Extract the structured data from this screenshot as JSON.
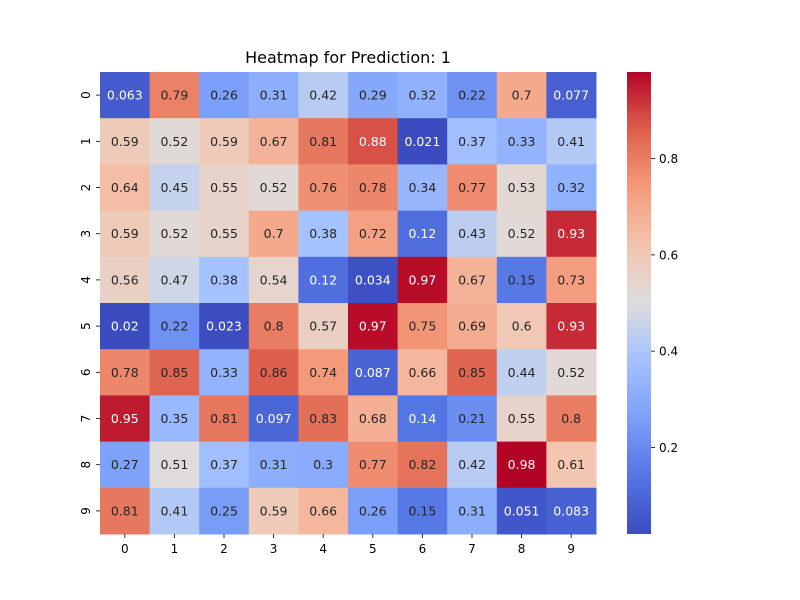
{
  "chart_data": {
    "type": "heatmap",
    "title": "Heatmap for Prediction: 1",
    "x_categories": [
      "0",
      "1",
      "2",
      "3",
      "4",
      "5",
      "6",
      "7",
      "8",
      "9"
    ],
    "y_categories": [
      "0",
      "1",
      "2",
      "3",
      "4",
      "5",
      "6",
      "7",
      "8",
      "9"
    ],
    "values": [
      [
        0.063,
        0.79,
        0.26,
        0.31,
        0.42,
        0.29,
        0.32,
        0.22,
        0.7,
        0.077
      ],
      [
        0.59,
        0.52,
        0.59,
        0.67,
        0.81,
        0.88,
        0.021,
        0.37,
        0.33,
        0.41
      ],
      [
        0.64,
        0.45,
        0.55,
        0.52,
        0.76,
        0.78,
        0.34,
        0.77,
        0.53,
        0.32
      ],
      [
        0.59,
        0.52,
        0.55,
        0.7,
        0.38,
        0.72,
        0.12,
        0.43,
        0.52,
        0.93
      ],
      [
        0.56,
        0.47,
        0.38,
        0.54,
        0.12,
        0.034,
        0.97,
        0.67,
        0.15,
        0.73
      ],
      [
        0.02,
        0.22,
        0.023,
        0.8,
        0.57,
        0.97,
        0.75,
        0.69,
        0.6,
        0.93
      ],
      [
        0.78,
        0.85,
        0.33,
        0.86,
        0.74,
        0.087,
        0.66,
        0.85,
        0.44,
        0.52
      ],
      [
        0.95,
        0.35,
        0.81,
        0.097,
        0.83,
        0.68,
        0.14,
        0.21,
        0.55,
        0.8
      ],
      [
        0.27,
        0.51,
        0.37,
        0.31,
        0.3,
        0.77,
        0.82,
        0.42,
        0.98,
        0.61
      ],
      [
        0.81,
        0.41,
        0.25,
        0.59,
        0.66,
        0.26,
        0.15,
        0.31,
        0.051,
        0.083
      ]
    ],
    "colormap": "coolwarm",
    "vmin": 0.02,
    "vmax": 0.98,
    "colorbar_ticks": [
      "0.2",
      "0.4",
      "0.6",
      "0.8"
    ],
    "annotations": true
  }
}
